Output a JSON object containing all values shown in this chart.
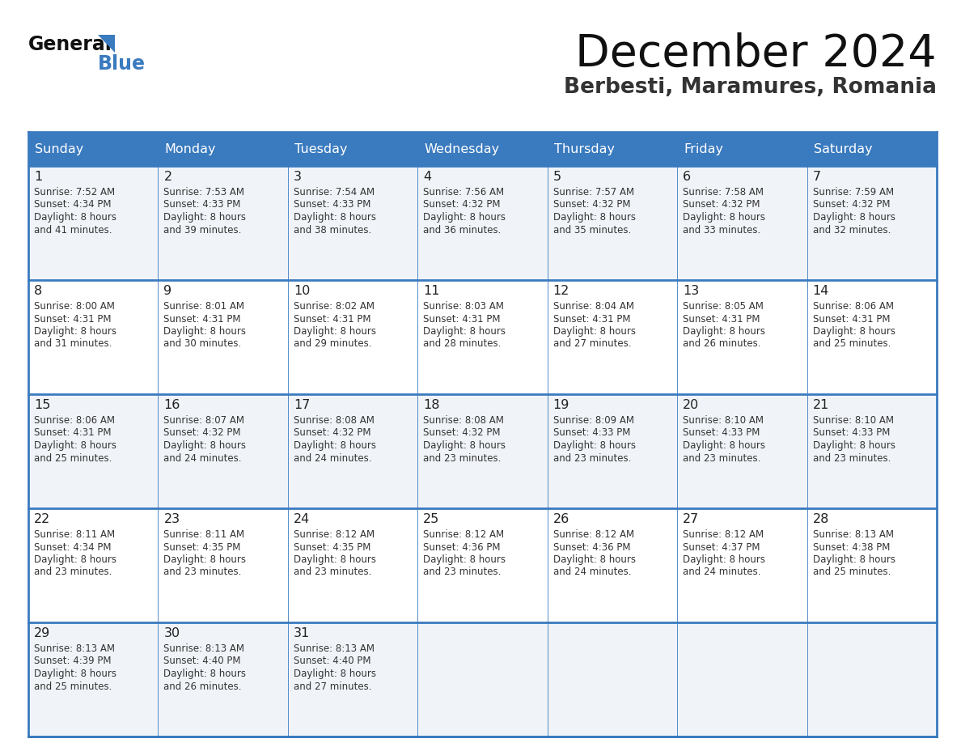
{
  "title": "December 2024",
  "subtitle": "Berbesti, Maramures, Romania",
  "header_color": "#3a7abf",
  "header_text_color": "#ffffff",
  "day_headers": [
    "Sunday",
    "Monday",
    "Tuesday",
    "Wednesday",
    "Thursday",
    "Friday",
    "Saturday"
  ],
  "bg_row_odd": "#f0f4f8",
  "bg_row_even": "#ffffff",
  "cell_border_color": "#3a7abf",
  "day_num_color": "#222222",
  "text_color": "#333333",
  "logo_general_color": "#111111",
  "logo_blue_color": "#3a7abf",
  "title_color": "#111111",
  "subtitle_color": "#333333",
  "weeks": [
    [
      {
        "day": 1,
        "sunrise": "7:52 AM",
        "sunset": "4:34 PM",
        "daylight_suffix": "41 minutes."
      },
      {
        "day": 2,
        "sunrise": "7:53 AM",
        "sunset": "4:33 PM",
        "daylight_suffix": "39 minutes."
      },
      {
        "day": 3,
        "sunrise": "7:54 AM",
        "sunset": "4:33 PM",
        "daylight_suffix": "38 minutes."
      },
      {
        "day": 4,
        "sunrise": "7:56 AM",
        "sunset": "4:32 PM",
        "daylight_suffix": "36 minutes."
      },
      {
        "day": 5,
        "sunrise": "7:57 AM",
        "sunset": "4:32 PM",
        "daylight_suffix": "35 minutes."
      },
      {
        "day": 6,
        "sunrise": "7:58 AM",
        "sunset": "4:32 PM",
        "daylight_suffix": "33 minutes."
      },
      {
        "day": 7,
        "sunrise": "7:59 AM",
        "sunset": "4:32 PM",
        "daylight_suffix": "32 minutes."
      }
    ],
    [
      {
        "day": 8,
        "sunrise": "8:00 AM",
        "sunset": "4:31 PM",
        "daylight_suffix": "31 minutes."
      },
      {
        "day": 9,
        "sunrise": "8:01 AM",
        "sunset": "4:31 PM",
        "daylight_suffix": "30 minutes."
      },
      {
        "day": 10,
        "sunrise": "8:02 AM",
        "sunset": "4:31 PM",
        "daylight_suffix": "29 minutes."
      },
      {
        "day": 11,
        "sunrise": "8:03 AM",
        "sunset": "4:31 PM",
        "daylight_suffix": "28 minutes."
      },
      {
        "day": 12,
        "sunrise": "8:04 AM",
        "sunset": "4:31 PM",
        "daylight_suffix": "27 minutes."
      },
      {
        "day": 13,
        "sunrise": "8:05 AM",
        "sunset": "4:31 PM",
        "daylight_suffix": "26 minutes."
      },
      {
        "day": 14,
        "sunrise": "8:06 AM",
        "sunset": "4:31 PM",
        "daylight_suffix": "25 minutes."
      }
    ],
    [
      {
        "day": 15,
        "sunrise": "8:06 AM",
        "sunset": "4:31 PM",
        "daylight_suffix": "25 minutes."
      },
      {
        "day": 16,
        "sunrise": "8:07 AM",
        "sunset": "4:32 PM",
        "daylight_suffix": "24 minutes."
      },
      {
        "day": 17,
        "sunrise": "8:08 AM",
        "sunset": "4:32 PM",
        "daylight_suffix": "24 minutes."
      },
      {
        "day": 18,
        "sunrise": "8:08 AM",
        "sunset": "4:32 PM",
        "daylight_suffix": "23 minutes."
      },
      {
        "day": 19,
        "sunrise": "8:09 AM",
        "sunset": "4:33 PM",
        "daylight_suffix": "23 minutes."
      },
      {
        "day": 20,
        "sunrise": "8:10 AM",
        "sunset": "4:33 PM",
        "daylight_suffix": "23 minutes."
      },
      {
        "day": 21,
        "sunrise": "8:10 AM",
        "sunset": "4:33 PM",
        "daylight_suffix": "23 minutes."
      }
    ],
    [
      {
        "day": 22,
        "sunrise": "8:11 AM",
        "sunset": "4:34 PM",
        "daylight_suffix": "23 minutes."
      },
      {
        "day": 23,
        "sunrise": "8:11 AM",
        "sunset": "4:35 PM",
        "daylight_suffix": "23 minutes."
      },
      {
        "day": 24,
        "sunrise": "8:12 AM",
        "sunset": "4:35 PM",
        "daylight_suffix": "23 minutes."
      },
      {
        "day": 25,
        "sunrise": "8:12 AM",
        "sunset": "4:36 PM",
        "daylight_suffix": "23 minutes."
      },
      {
        "day": 26,
        "sunrise": "8:12 AM",
        "sunset": "4:36 PM",
        "daylight_suffix": "24 minutes."
      },
      {
        "day": 27,
        "sunrise": "8:12 AM",
        "sunset": "4:37 PM",
        "daylight_suffix": "24 minutes."
      },
      {
        "day": 28,
        "sunrise": "8:13 AM",
        "sunset": "4:38 PM",
        "daylight_suffix": "25 minutes."
      }
    ],
    [
      {
        "day": 29,
        "sunrise": "8:13 AM",
        "sunset": "4:39 PM",
        "daylight_suffix": "25 minutes."
      },
      {
        "day": 30,
        "sunrise": "8:13 AM",
        "sunset": "4:40 PM",
        "daylight_suffix": "26 minutes."
      },
      {
        "day": 31,
        "sunrise": "8:13 AM",
        "sunset": "4:40 PM",
        "daylight_suffix": "27 minutes."
      },
      null,
      null,
      null,
      null
    ]
  ]
}
